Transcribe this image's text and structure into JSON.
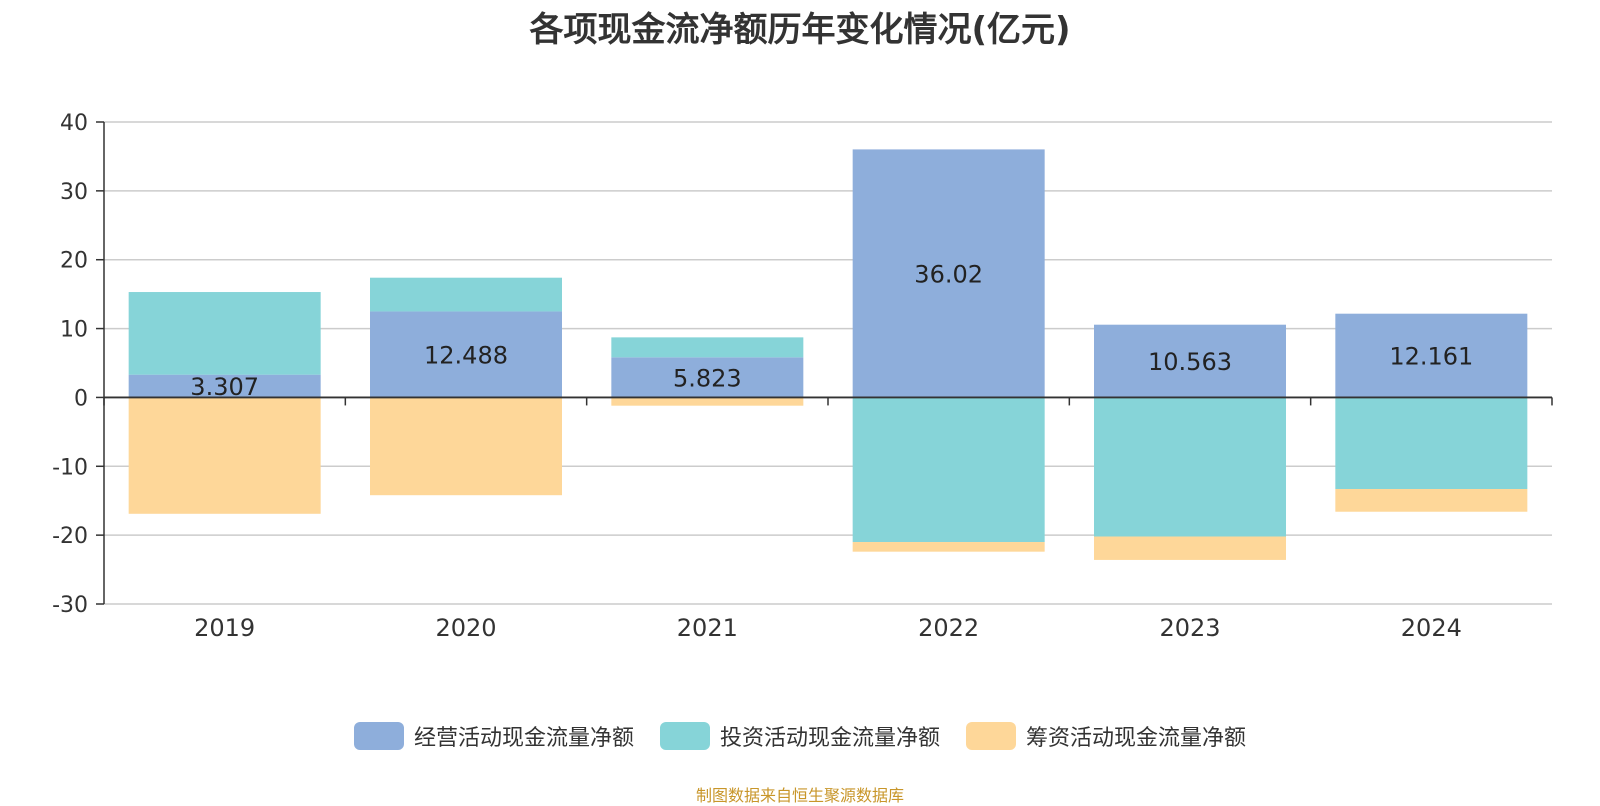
{
  "title": "各项现金流净额历年变化情况(亿元)",
  "source": "制图数据来自恒生聚源数据库",
  "chart_data": {
    "type": "bar",
    "stacked": true,
    "categories": [
      "2019",
      "2020",
      "2021",
      "2022",
      "2023",
      "2024"
    ],
    "series": [
      {
        "name": "经营活动现金流量净额",
        "color": "#8eaedb",
        "values": [
          3.307,
          12.488,
          5.823,
          36.02,
          10.563,
          12.161
        ],
        "labels": [
          "3.307",
          "12.488",
          "5.823",
          "36.02",
          "10.563",
          "12.161"
        ]
      },
      {
        "name": "投资活动现金流量净额",
        "color": "#86d4d8",
        "values": [
          12.0,
          4.9,
          2.9,
          -21.0,
          -20.2,
          -13.3
        ]
      },
      {
        "name": "筹资活动现金流量净额",
        "color": "#fed799",
        "values": [
          -16.9,
          -14.2,
          -1.2,
          -1.4,
          -3.4,
          -3.3
        ]
      }
    ],
    "ylim": [
      -30,
      40
    ],
    "yticks": [
      40,
      30,
      20,
      10,
      0,
      -10,
      -20,
      -30
    ],
    "grid": true,
    "legend_position": "bottom"
  }
}
